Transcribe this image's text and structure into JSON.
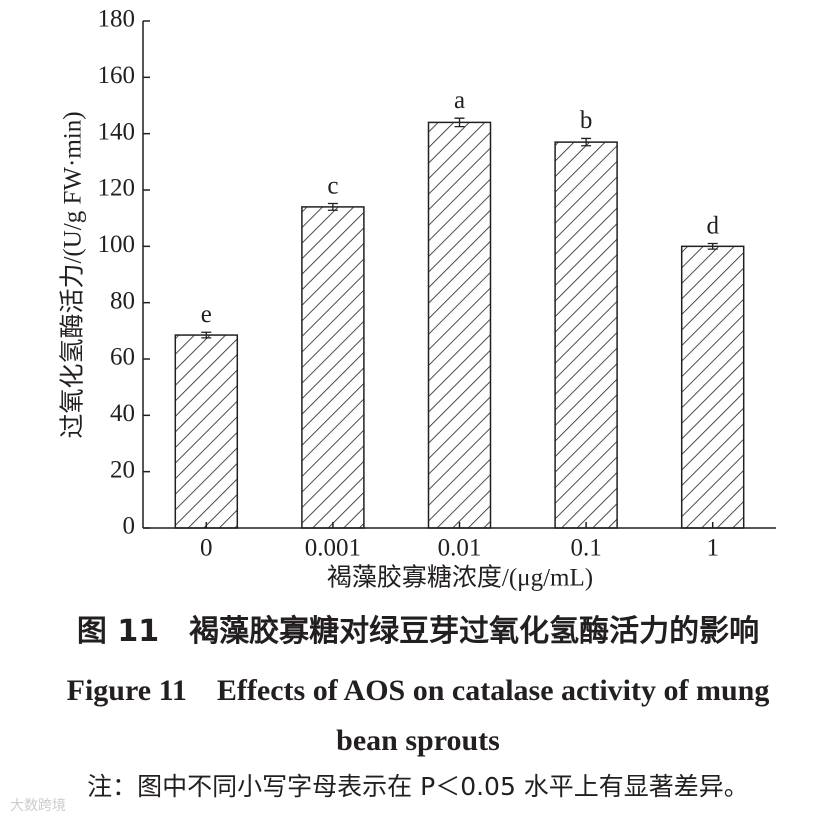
{
  "chart_data": {
    "type": "bar",
    "categories": [
      "0",
      "0.001",
      "0.01",
      "0.1",
      "1"
    ],
    "values": [
      68.5,
      114,
      144,
      137,
      100
    ],
    "errors": [
      1,
      1.2,
      1.5,
      1.3,
      1
    ],
    "letters": [
      "e",
      "c",
      "a",
      "b",
      "d"
    ],
    "color": "#231f20",
    "ylim": [
      0,
      180
    ],
    "yticks": [
      0,
      20,
      40,
      60,
      80,
      100,
      120,
      140,
      160,
      180
    ],
    "ylabel": "过氧化氢酶活力/(U/g FW·min)",
    "xlabel": "褐藻胶寡糖浓度/(μg/mL)"
  },
  "caption": {
    "cn": "图 11　褐藻胶寡糖对绿豆芽过氧化氢酶活力的影响",
    "en_line1": "Figure 11　Effects of AOS on catalase activity of mung",
    "en_line2": "bean sprouts",
    "note": "注：图中不同小写字母表示在 P＜0.05 水平上有显著差异。"
  },
  "watermark": "大数跨境"
}
